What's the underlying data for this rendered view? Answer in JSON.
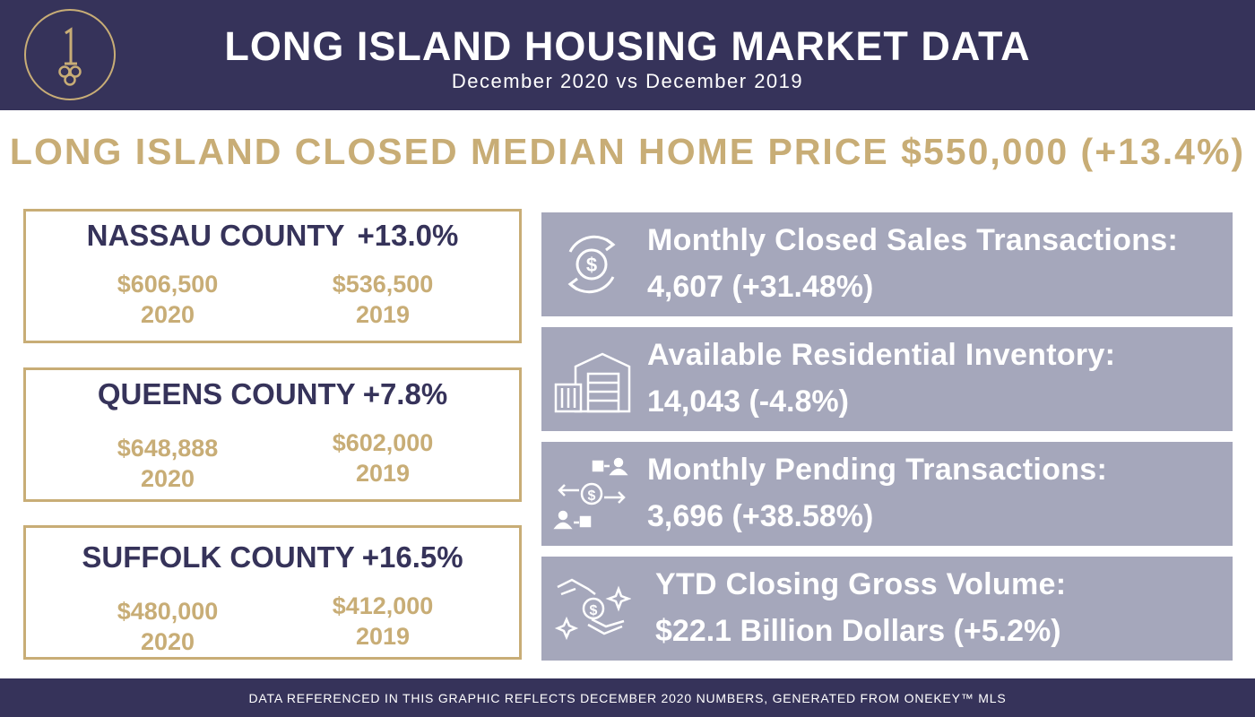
{
  "header": {
    "title": "LONG ISLAND HOUSING MARKET DATA",
    "subtitle": "December 2020 vs December 2019",
    "logo_icon": "key-logo-icon"
  },
  "headline": "LONG ISLAND CLOSED MEDIAN HOME PRICE $550,000 (+13.4%)",
  "counties": [
    {
      "name": "NASSAU COUNTY",
      "change": "+13.0%",
      "price_2020": "$606,500",
      "year_2020": "2020",
      "price_2019": "$536,500",
      "year_2019": "2019"
    },
    {
      "name": "QUEENS COUNTY",
      "change": "+7.8%",
      "price_2020": "$648,888",
      "year_2020": "2020",
      "price_2019": "$602,000",
      "year_2019": "2019"
    },
    {
      "name": "SUFFOLK COUNTY",
      "change": "+16.5%",
      "price_2020": "$480,000",
      "year_2020": "2020",
      "price_2019": "$412,000",
      "year_2019": "2019"
    }
  ],
  "stats": [
    {
      "label": "Monthly Closed Sales Transactions:",
      "value": "4,607 (+31.48%)",
      "icon": "dollar-cycle-icon"
    },
    {
      "label": "Available Residential Inventory:",
      "value": "14,043 (-4.8%)",
      "icon": "warehouse-icon"
    },
    {
      "label": "Monthly Pending Transactions:",
      "value": "3,696 (+38.58%)",
      "icon": "money-transfer-icon"
    },
    {
      "label": "YTD Closing Gross Volume:",
      "value": "$22.1 Billion Dollars (+5.2%)",
      "icon": "hand-coin-icon"
    }
  ],
  "footer": {
    "text": "DATA REFERENCED IN THIS GRAPHIC REFLECTS DECEMBER 2020 NUMBERS, GENERATED FROM ONEKEY™ MLS"
  },
  "colors": {
    "navy": "#36335a",
    "gold": "#c8ad76",
    "stat_bg": "#a5a7bb"
  }
}
